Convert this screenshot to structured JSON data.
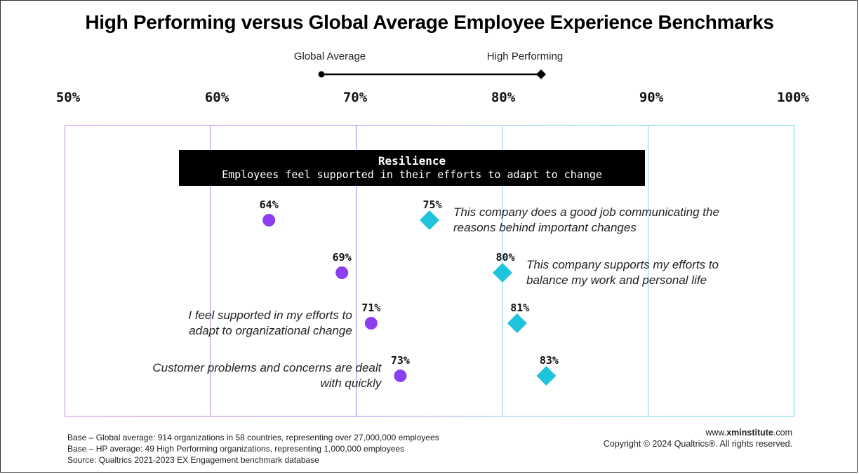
{
  "title": "High Performing versus Global Average Employee Experience Benchmarks",
  "legend": {
    "global_label": "Global Average",
    "high_label": "High Performing",
    "global_color": "#8b3ff0",
    "high_color": "#1fc3dc"
  },
  "section": {
    "title": "Resilience",
    "subtitle": "Employees feel supported in their efforts to adapt to change"
  },
  "chart_data": {
    "type": "dumbbell",
    "xlim": [
      50,
      100
    ],
    "ticks": [
      "50%",
      "60%",
      "70%",
      "80%",
      "90%",
      "100%"
    ],
    "series": [
      {
        "name": "Global Average",
        "marker": "circle"
      },
      {
        "name": "High Performing",
        "marker": "diamond"
      }
    ],
    "items": [
      {
        "statement": [
          "This company does a good job communicating the",
          "reasons behind important changes"
        ],
        "global": 64,
        "high": 75,
        "global_label": "64%",
        "high_label": "75%",
        "text_side": "right"
      },
      {
        "statement": [
          "This company supports my efforts to",
          "balance my work and personal life"
        ],
        "global": 69,
        "high": 80,
        "global_label": "69%",
        "high_label": "80%",
        "text_side": "right"
      },
      {
        "statement": [
          "I feel supported in my efforts to",
          "adapt to organizational change"
        ],
        "global": 71,
        "high": 81,
        "global_label": "71%",
        "high_label": "81%",
        "text_side": "left"
      },
      {
        "statement": [
          "Customer problems and concerns are dealt",
          "with quickly"
        ],
        "global": 73,
        "high": 83,
        "global_label": "73%",
        "high_label": "83%",
        "text_side": "left"
      }
    ]
  },
  "footnotes": [
    "Base – Global average: 914 organizations in 58 countries, representing over 27,000,000 employees",
    "Base – HP average: 49 High Performing organizations,  representing 1,000,000 employees",
    "Source: Qualtrics 2021-2023 EX Engagement benchmark database"
  ],
  "credit": {
    "site_prefix": "www.",
    "site_bold": "xminstitute",
    "site_suffix": ".com",
    "copyright": "Copyright © 2024 Qualtrics®. All rights reserved."
  }
}
